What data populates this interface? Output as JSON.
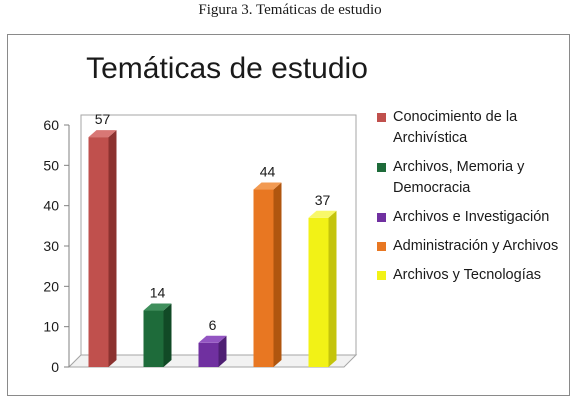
{
  "caption": "Figura 3. Temáticas de estudio",
  "chart_data": {
    "type": "bar",
    "title": "Temáticas de estudio",
    "categories": [
      "Conocimiento de la Archivística",
      "Archivos, Memoria y Democracia",
      "Archivos e Investigación",
      "Administración y Archivos",
      "Archivos y Tecnologías"
    ],
    "values": [
      57,
      14,
      6,
      44,
      37
    ],
    "data_labels": [
      "57",
      "14",
      "6",
      "44",
      "37"
    ],
    "colors": [
      "#c0504d",
      "#1e6b3a",
      "#7030a0",
      "#e87722",
      "#f2f216"
    ],
    "side_colors": [
      "#8c3230",
      "#114a26",
      "#4e1f73",
      "#b0560f",
      "#c4c40c"
    ],
    "top_colors": [
      "#d87775",
      "#3f8f5c",
      "#9355c2",
      "#f29a52",
      "#f8f86a"
    ],
    "ylim": [
      0,
      60
    ],
    "yticks": [
      "0",
      "10",
      "20",
      "30",
      "40",
      "50",
      "60"
    ],
    "grid": false,
    "legend_position": "right",
    "legend": [
      "Conocimiento de la Archivística",
      "Archivos, Memoria y Democracia",
      "Archivos e Investigación",
      "Administración y Archivos",
      "Archivos y Tecnologías"
    ]
  }
}
